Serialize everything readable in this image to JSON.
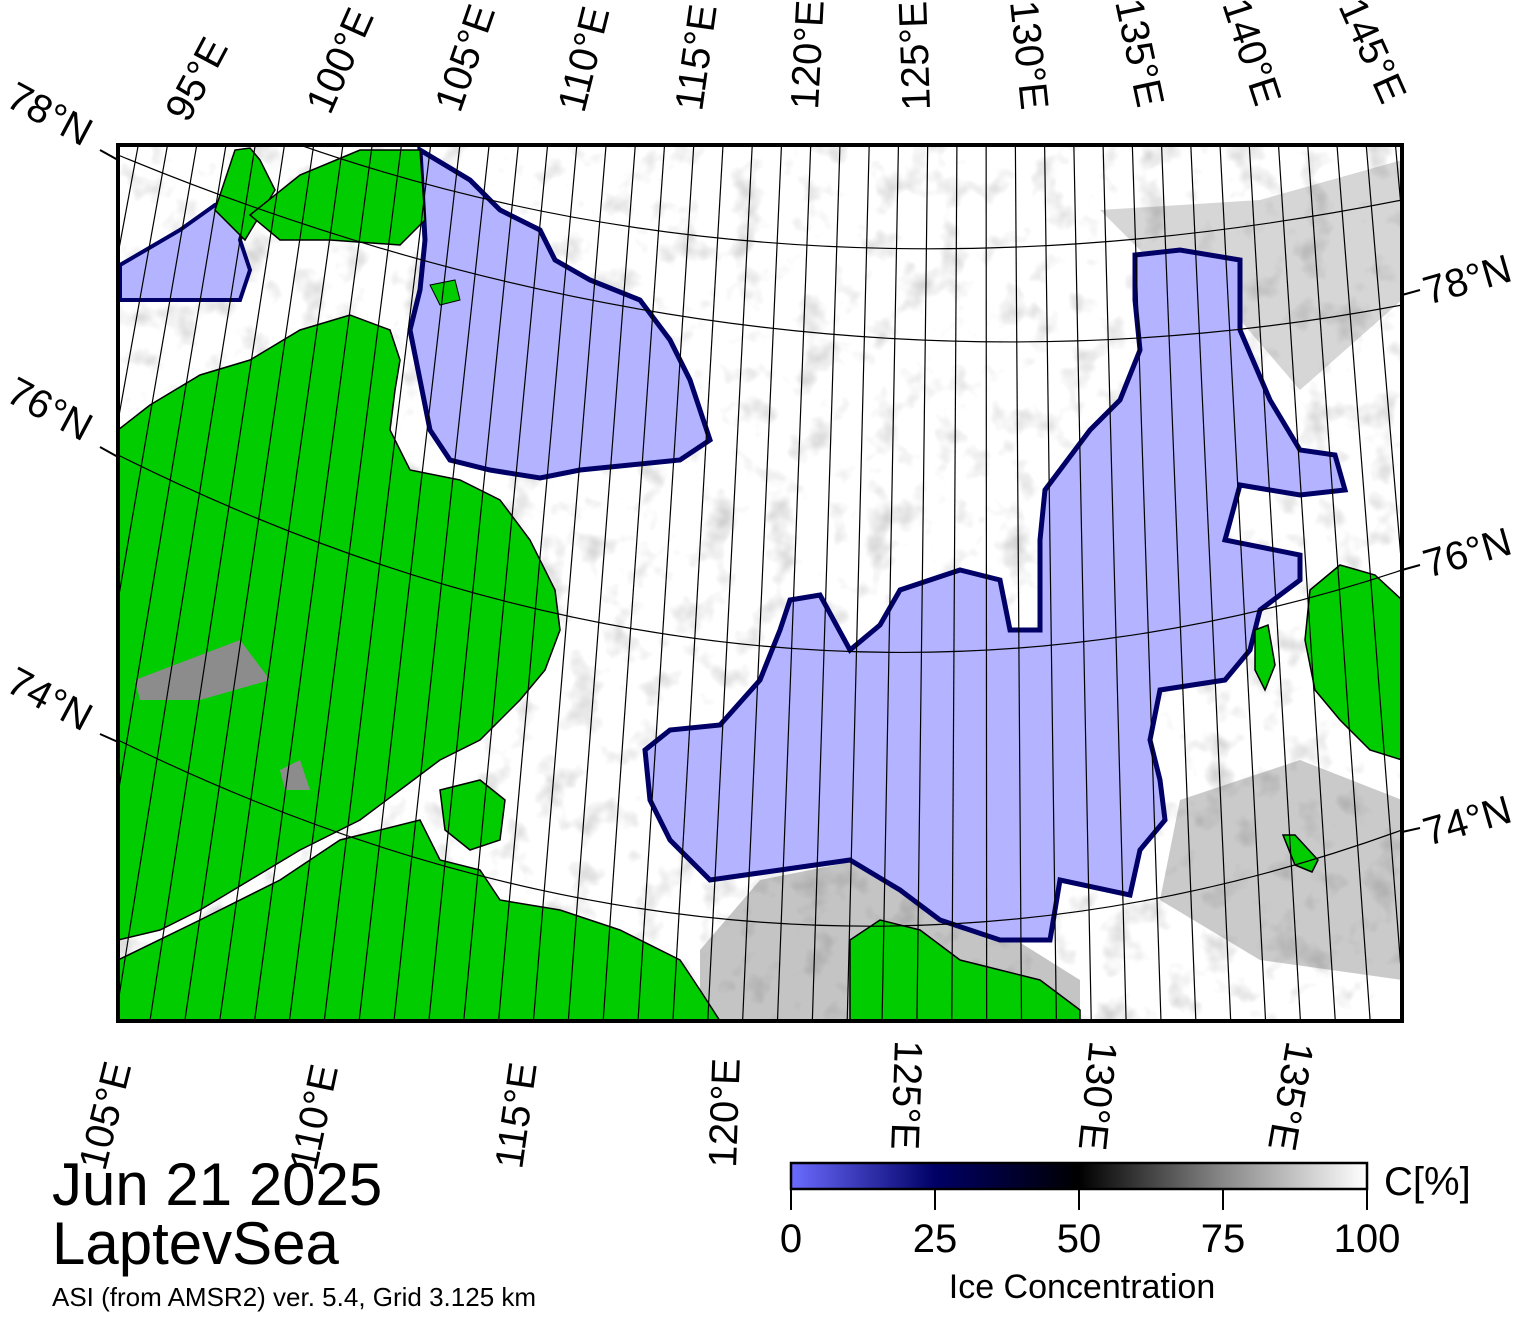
{
  "map": {
    "title_date": "Jun 21 2025",
    "region_name": "LaptevSea",
    "source_note": "ASI (from AMSR2) ver. 5.4,  Grid 3.125 km",
    "colors": {
      "land": "#00cc00",
      "land_gray": "#8c8c8c",
      "open_water": "#b3b3ff",
      "ice_low": "#1a1a66",
      "frame": "#000000"
    },
    "top_lon_labels": [
      "95°E",
      "100°E",
      "105°E",
      "110°E",
      "115°E",
      "120°E",
      "125°E",
      "130°E",
      "135°E",
      "140°E",
      "145°E"
    ],
    "bottom_lon_labels": [
      "105°E",
      "110°E",
      "115°E",
      "120°E",
      "125°E",
      "130°E",
      "135°E"
    ],
    "left_lat_labels": [
      "78°N",
      "76°N",
      "74°N"
    ],
    "right_lat_labels": [
      "78°N",
      "76°N",
      "74°N"
    ]
  },
  "colorbar": {
    "title": "Ice Concentration",
    "unit": "C[%]",
    "ticks": [
      "0",
      "25",
      "50",
      "75",
      "100"
    ],
    "gradient_colors": [
      "#6b6bff",
      "#000066",
      "#000000",
      "#888888",
      "#ffffff"
    ]
  }
}
